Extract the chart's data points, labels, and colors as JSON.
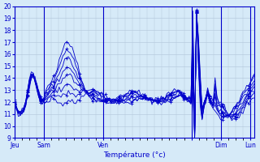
{
  "title": "",
  "xlabel": "Température (°c)",
  "ylabel": "",
  "xlim": [
    0,
    130
  ],
  "ylim": [
    9,
    20
  ],
  "yticks": [
    9,
    10,
    11,
    12,
    13,
    14,
    15,
    16,
    17,
    18,
    19,
    20
  ],
  "day_ticks": [
    0,
    16,
    48,
    96,
    112,
    128
  ],
  "day_labels": [
    "Jeu",
    "Sam",
    "Ven",
    "",
    "Dim",
    "Lun"
  ],
  "bg_color": "#d6eaf8",
  "line_color": "#0000cc",
  "grid_color": "#b0c4d8",
  "n_points": 130,
  "series_lower": [
    12.0,
    11.5,
    11.2,
    11.0,
    11.1,
    11.3,
    11.8,
    12.5,
    13.2,
    14.0,
    14.2,
    14.0,
    13.5,
    13.0,
    12.5,
    12.2,
    12.0,
    12.0,
    12.1,
    12.2,
    12.3,
    12.3,
    12.2,
    12.1,
    12.0,
    11.9,
    11.8,
    11.9,
    12.0,
    12.2,
    12.1,
    12.0,
    11.9,
    12.0,
    12.1,
    12.3,
    12.5,
    12.7,
    12.8,
    12.9,
    12.9,
    13.0,
    13.1,
    13.1,
    13.0,
    12.9,
    12.8,
    12.7,
    12.5,
    12.4,
    12.3,
    12.3,
    12.2,
    12.2,
    12.1,
    12.0,
    12.0,
    12.0,
    12.0,
    12.0,
    12.0,
    12.0,
    12.0,
    12.0,
    12.0,
    12.1,
    12.1,
    12.2,
    12.2,
    12.3,
    12.3,
    12.3,
    12.2,
    12.2,
    12.1,
    12.1,
    12.1,
    12.0,
    12.0,
    12.0,
    12.0,
    12.0,
    12.0,
    12.1,
    12.1,
    12.2,
    12.3,
    12.4,
    12.5,
    12.5,
    12.5,
    12.4,
    12.3,
    12.2,
    12.1,
    12.0,
    12.8,
    9.0,
    19.5,
    17.5,
    14.5,
    11.5,
    12.0,
    12.5,
    13.0,
    12.5,
    12.2,
    12.0,
    14.0,
    12.5,
    12.2,
    12.0,
    11.8,
    11.5,
    11.2,
    11.0,
    10.8,
    10.6,
    10.5,
    10.5,
    10.6,
    10.8,
    11.0,
    11.2,
    11.5,
    11.8,
    12.0,
    12.2,
    12.3,
    12.4
  ],
  "series_upper": [
    12.0,
    11.5,
    11.2,
    11.0,
    11.2,
    11.5,
    12.0,
    13.0,
    14.0,
    14.5,
    14.3,
    13.8,
    13.0,
    12.5,
    12.0,
    12.0,
    12.5,
    13.0,
    13.2,
    13.5,
    13.8,
    14.0,
    14.5,
    15.0,
    15.5,
    16.0,
    16.5,
    16.8,
    17.0,
    17.0,
    16.8,
    16.5,
    16.0,
    15.5,
    15.0,
    14.5,
    14.0,
    13.5,
    13.0,
    12.8,
    12.5,
    12.3,
    12.2,
    12.1,
    12.0,
    12.0,
    12.0,
    12.0,
    12.0,
    12.0,
    12.0,
    12.0,
    12.0,
    12.0,
    12.1,
    12.2,
    12.3,
    12.4,
    12.5,
    12.6,
    12.7,
    12.8,
    12.9,
    13.0,
    13.0,
    13.0,
    12.9,
    12.8,
    12.7,
    12.6,
    12.5,
    12.4,
    12.3,
    12.2,
    12.2,
    12.2,
    12.2,
    12.2,
    12.2,
    12.3,
    12.4,
    12.5,
    12.6,
    12.7,
    12.8,
    12.9,
    12.9,
    12.9,
    12.9,
    12.8,
    12.7,
    12.6,
    12.5,
    12.4,
    12.3,
    12.2,
    19.5,
    9.5,
    19.5,
    15.0,
    11.5,
    10.5,
    11.5,
    12.0,
    12.5,
    12.0,
    11.8,
    11.5,
    11.3,
    11.0,
    10.8,
    10.6,
    10.5,
    10.5,
    10.6,
    10.8,
    11.0,
    11.2,
    11.5,
    11.8,
    12.0,
    12.2,
    12.5,
    12.8,
    13.0,
    13.2,
    13.5,
    13.8,
    14.0,
    14.2
  ]
}
